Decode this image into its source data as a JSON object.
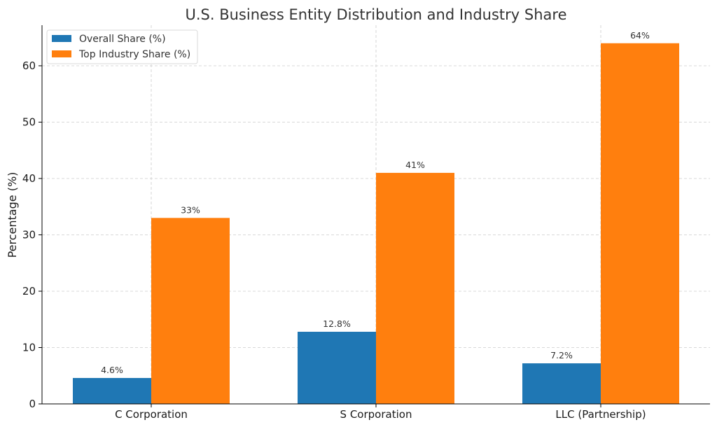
{
  "chart_data": {
    "type": "bar",
    "title": "U.S. Business Entity Distribution and Industry Share",
    "xlabel": "",
    "ylabel": "Percentage (%)",
    "categories": [
      "C Corporation",
      "S Corporation",
      "LLC (Partnership)"
    ],
    "series": [
      {
        "name": "Overall Share (%)",
        "values": [
          4.6,
          12.8,
          7.2
        ],
        "labels": [
          "4.6%",
          "12.8%",
          "7.2%"
        ],
        "color": "#1f77b4"
      },
      {
        "name": "Top Industry Share (%)",
        "values": [
          33,
          41,
          64
        ],
        "labels": [
          "33%",
          "41%",
          "64%"
        ],
        "color": "#ff7f0e"
      }
    ],
    "ylim": [
      0,
      67.2
    ],
    "yticks": [
      0,
      10,
      20,
      30,
      40,
      50,
      60
    ],
    "grid": true,
    "legend_position": "top-left"
  }
}
